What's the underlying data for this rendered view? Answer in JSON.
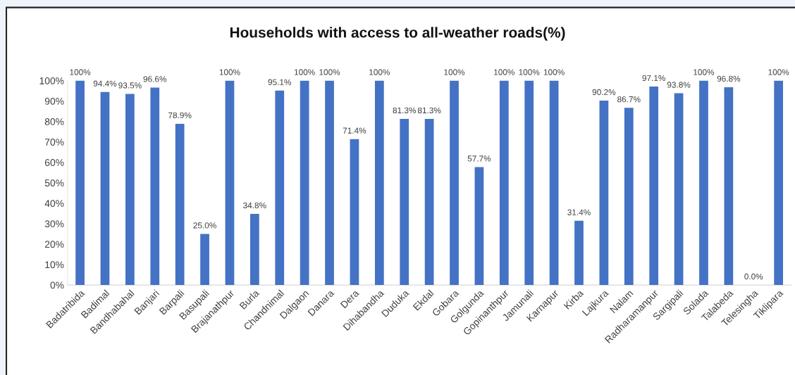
{
  "chart_data": {
    "type": "bar",
    "title": "Households with access to all-weather roads(%)",
    "categories": [
      "Badatribida",
      "Badimal",
      "Bandhabahal",
      "Banjari",
      "Barpali",
      "Basupali",
      "Brajanathpur",
      "Burla",
      "Chandnimal",
      "Dalgaon",
      "Danara",
      "Dera",
      "Dihabandha",
      "Duduka",
      "Ekdal",
      "Gobara",
      "Golgunda",
      "Gopinanthpur",
      "Jamunali",
      "Karnapur",
      "Kirba",
      "Lajkura",
      "Nalam",
      "Radharamanpur",
      "Sargipali",
      "Solada",
      "Talabeda",
      "Telesingha",
      "Tiklipara"
    ],
    "values": [
      100,
      94.4,
      93.5,
      96.6,
      78.9,
      25.0,
      100,
      34.8,
      95.1,
      100,
      100,
      71.4,
      100,
      81.3,
      81.3,
      100,
      57.7,
      100,
      100,
      100,
      31.4,
      90.2,
      86.7,
      97.1,
      93.8,
      100,
      96.8,
      0.0,
      100
    ],
    "value_labels": [
      "100%",
      "94.4%",
      "93.5%",
      "96.6%",
      "78.9%",
      "25.0%",
      "100%",
      "34.8%",
      "95.1%",
      "100%",
      "100%",
      "71.4%",
      "100%",
      "81.3%",
      "81.3%",
      "100%",
      "57.7%",
      "100%",
      "100%",
      "100%",
      "31.4%",
      "90.2%",
      "86.7%",
      "97.1%",
      "93.8%",
      "100%",
      "96.8%",
      "0.0%",
      "100%"
    ],
    "color": "#4472c4",
    "ylim": [
      0,
      100
    ],
    "yticks": [
      {
        "value": 0,
        "label": "0%"
      },
      {
        "value": 10,
        "label": "10%"
      },
      {
        "value": 20,
        "label": "20%"
      },
      {
        "value": 30,
        "label": "30%"
      },
      {
        "value": 40,
        "label": "40%"
      },
      {
        "value": 50,
        "label": "50%"
      },
      {
        "value": 60,
        "label": "60%"
      },
      {
        "value": 70,
        "label": "70%"
      },
      {
        "value": 80,
        "label": "80%"
      },
      {
        "value": 90,
        "label": "90%"
      },
      {
        "value": 100,
        "label": "100%"
      }
    ],
    "grid": false
  }
}
